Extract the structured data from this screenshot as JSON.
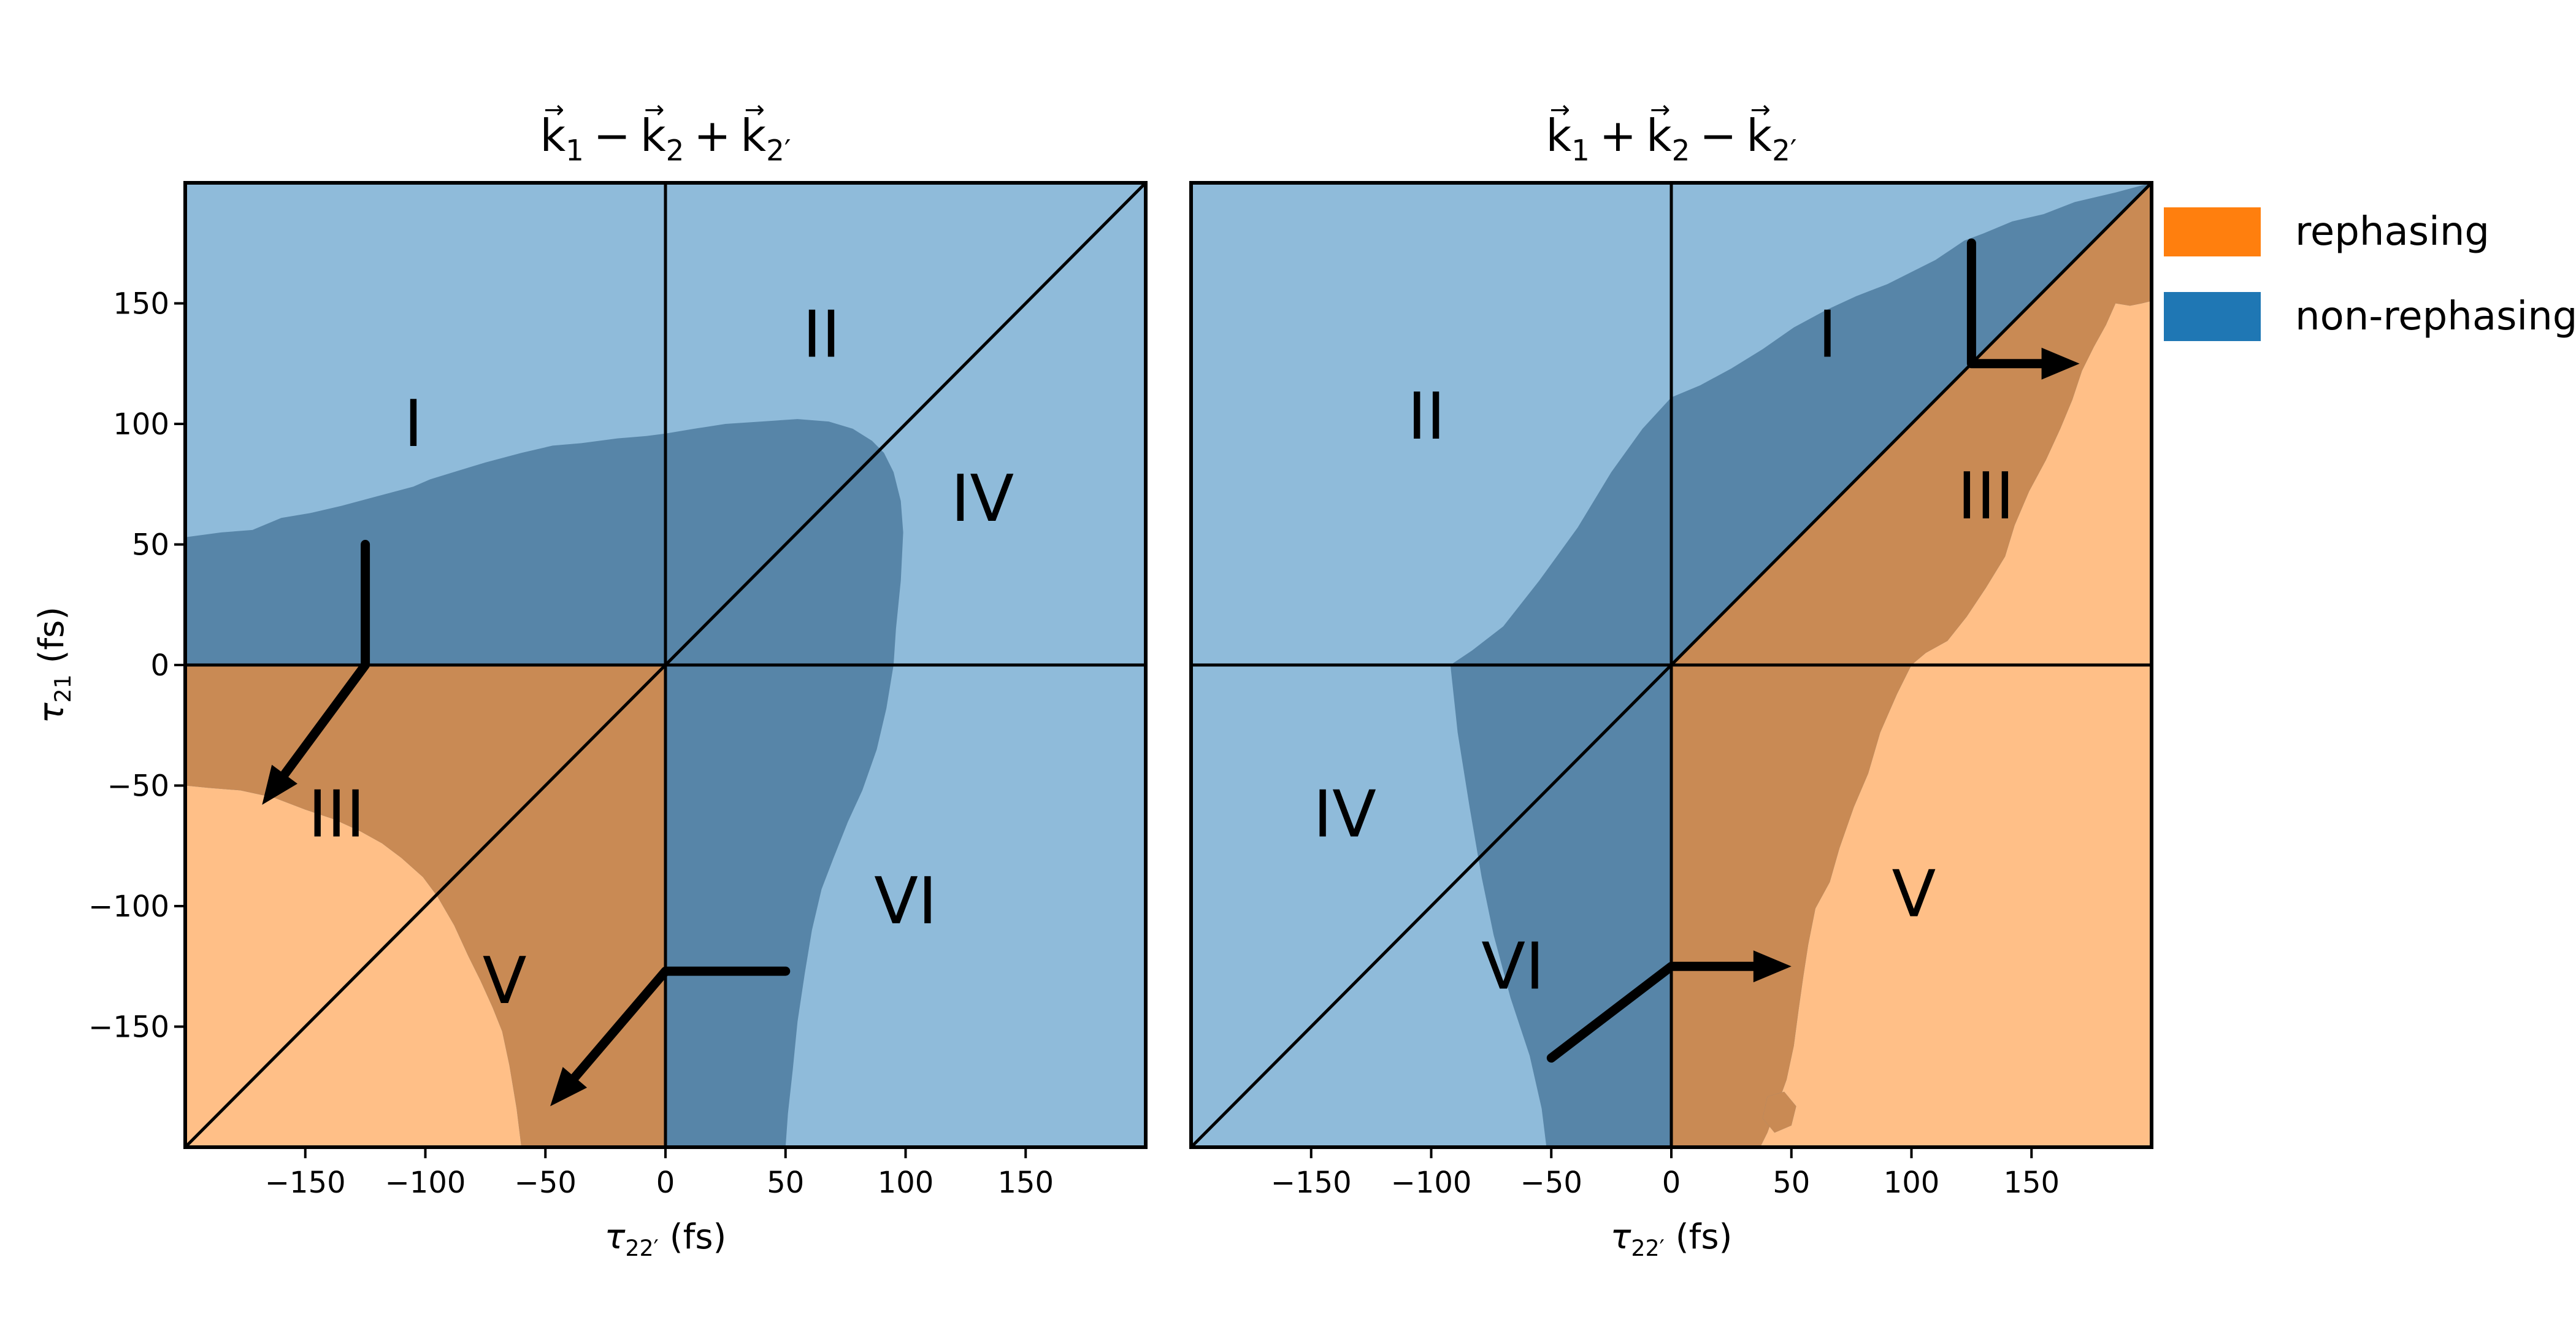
{
  "figure": {
    "background": "#ffffff"
  },
  "colors": {
    "light_blue": "#8fbbda",
    "dark_blue": "#5785a8",
    "light_orange": "#ffbf87",
    "dark_orange": "#c98a54",
    "line": "#000000"
  },
  "legend": {
    "items": [
      {
        "label": "rephasing",
        "color": "#ff7f0e"
      },
      {
        "label": "non-rephasing",
        "color": "#1f77b4"
      }
    ]
  },
  "chart_data": [
    {
      "type": "heatmap",
      "subtype": "filled-contour-region-map",
      "title_text": "k⃗₁ − k⃗₂ + k⃗₂′",
      "title_parts": [
        {
          "sign": "",
          "base": "k",
          "sub": "1"
        },
        {
          "sign": "−",
          "base": "k",
          "sub": "2"
        },
        {
          "sign": "+",
          "base": "k",
          "sub": "2′"
        }
      ],
      "xlabel": {
        "symbol": "τ",
        "sub": "22′",
        "unit": "(fs)"
      },
      "ylabel": {
        "symbol": "τ",
        "sub": "21",
        "unit": "(fs)"
      },
      "xlim": [
        -200,
        200
      ],
      "ylim": [
        -200,
        200
      ],
      "xticks": [
        -150,
        -100,
        -50,
        0,
        50,
        100,
        150
      ],
      "yticks": [
        -150,
        -100,
        -50,
        0,
        50,
        100,
        150
      ],
      "show_ytick_labels": true,
      "reference_lines": [
        "y=0",
        "x=0",
        "diagonal y=x"
      ],
      "rephasing_background_polygon": [
        [
          -200,
          0
        ],
        [
          0,
          0
        ],
        [
          0,
          -200
        ],
        [
          -200,
          -200
        ]
      ],
      "overlap_region_polygon": [
        [
          -200,
          53
        ],
        [
          -185,
          55
        ],
        [
          -172,
          56
        ],
        [
          -160,
          61
        ],
        [
          -148,
          63
        ],
        [
          -135,
          66
        ],
        [
          -120,
          70
        ],
        [
          -105,
          74
        ],
        [
          -98,
          77
        ],
        [
          -85,
          81
        ],
        [
          -75,
          84
        ],
        [
          -60,
          88
        ],
        [
          -47,
          91
        ],
        [
          -35,
          92
        ],
        [
          -20,
          94
        ],
        [
          -8,
          95
        ],
        [
          0,
          96
        ],
        [
          12,
          98
        ],
        [
          25,
          100
        ],
        [
          40,
          101
        ],
        [
          55,
          102
        ],
        [
          68,
          101
        ],
        [
          78,
          98
        ],
        [
          86,
          93
        ],
        [
          91,
          88
        ],
        [
          95,
          80
        ],
        [
          98,
          68
        ],
        [
          99,
          55
        ],
        [
          98,
          35
        ],
        [
          96,
          15
        ],
        [
          95,
          0
        ],
        [
          92,
          -18
        ],
        [
          88,
          -35
        ],
        [
          82,
          -52
        ],
        [
          76,
          -65
        ],
        [
          70,
          -80
        ],
        [
          65,
          -93
        ],
        [
          61,
          -110
        ],
        [
          58,
          -128
        ],
        [
          55,
          -148
        ],
        [
          53,
          -168
        ],
        [
          51,
          -186
        ],
        [
          50,
          -200
        ],
        [
          -60,
          -200
        ],
        [
          -62,
          -184
        ],
        [
          -65,
          -166
        ],
        [
          -68,
          -152
        ],
        [
          -72,
          -142
        ],
        [
          -77,
          -131
        ],
        [
          -82,
          -121
        ],
        [
          -88,
          -108
        ],
        [
          -95,
          -96
        ],
        [
          -101,
          -88
        ],
        [
          -110,
          -80
        ],
        [
          -118,
          -74
        ],
        [
          -127,
          -69
        ],
        [
          -138,
          -64
        ],
        [
          -150,
          -60
        ],
        [
          -163,
          -55
        ],
        [
          -177,
          -52
        ],
        [
          -190,
          -51
        ],
        [
          -200,
          -50
        ]
      ],
      "islands": [],
      "region_labels": [
        {
          "text": "I",
          "x": -105,
          "y": 100
        },
        {
          "text": "II",
          "x": 65,
          "y": 137
        },
        {
          "text": "IV",
          "x": 132,
          "y": 69
        },
        {
          "text": "III",
          "x": -137,
          "y": -62
        },
        {
          "text": "V",
          "x": -67,
          "y": -131
        },
        {
          "text": "VI",
          "x": 100,
          "y": -98
        }
      ],
      "pulse_arrows": [
        {
          "points": [
            [
              -125,
              50
            ],
            [
              -125,
              0
            ],
            [
              -168,
              -58
            ]
          ]
        },
        {
          "points": [
            [
              50,
              -127
            ],
            [
              0,
              -127
            ],
            [
              -48,
              -183
            ]
          ]
        }
      ]
    },
    {
      "type": "heatmap",
      "subtype": "filled-contour-region-map",
      "title_text": "k⃗₁ + k⃗₂ − k⃗₂′",
      "title_parts": [
        {
          "sign": "",
          "base": "k",
          "sub": "1"
        },
        {
          "sign": "+",
          "base": "k",
          "sub": "2"
        },
        {
          "sign": "−",
          "base": "k",
          "sub": "2′"
        }
      ],
      "xlabel": {
        "symbol": "τ",
        "sub": "22′",
        "unit": "(fs)"
      },
      "ylabel": null,
      "xlim": [
        -200,
        200
      ],
      "ylim": [
        -200,
        200
      ],
      "xticks": [
        -150,
        -100,
        -50,
        0,
        50,
        100,
        150
      ],
      "yticks": [
        -150,
        -100,
        -50,
        0,
        50,
        100,
        150
      ],
      "show_ytick_labels": false,
      "reference_lines": [
        "y=0",
        "x=0",
        "diagonal y=x"
      ],
      "rephasing_background_polygon": [
        [
          0,
          0
        ],
        [
          200,
          200
        ],
        [
          200,
          -200
        ],
        [
          0,
          -200
        ]
      ],
      "overlap_region_polygon": [
        [
          200,
          200
        ],
        [
          185,
          196
        ],
        [
          168,
          192
        ],
        [
          155,
          187
        ],
        [
          142,
          184
        ],
        [
          130,
          179
        ],
        [
          122,
          176
        ],
        [
          110,
          168
        ],
        [
          102,
          164
        ],
        [
          90,
          158
        ],
        [
          77,
          153
        ],
        [
          64,
          147
        ],
        [
          51,
          140
        ],
        [
          38,
          131
        ],
        [
          25,
          123
        ],
        [
          12,
          116
        ],
        [
          0,
          111
        ],
        [
          -12,
          98
        ],
        [
          -25,
          80
        ],
        [
          -39,
          57
        ],
        [
          -55,
          35
        ],
        [
          -70,
          16
        ],
        [
          -83,
          6
        ],
        [
          -92,
          0
        ],
        [
          -89,
          -28
        ],
        [
          -84,
          -59
        ],
        [
          -79,
          -88
        ],
        [
          -74,
          -112
        ],
        [
          -67,
          -138
        ],
        [
          -59,
          -162
        ],
        [
          -54,
          -184
        ],
        [
          -52,
          -200
        ],
        [
          37,
          -200
        ],
        [
          40,
          -194
        ],
        [
          44,
          -183
        ],
        [
          48,
          -172
        ],
        [
          51,
          -158
        ],
        [
          53,
          -143
        ],
        [
          55,
          -129
        ],
        [
          57,
          -116
        ],
        [
          60,
          -101
        ],
        [
          66,
          -90
        ],
        [
          70,
          -76
        ],
        [
          76,
          -59
        ],
        [
          82,
          -45
        ],
        [
          87,
          -28
        ],
        [
          94,
          -12
        ],
        [
          100,
          0
        ],
        [
          106,
          5
        ],
        [
          115,
          10
        ],
        [
          123,
          20
        ],
        [
          131,
          32
        ],
        [
          139,
          45
        ],
        [
          143,
          58
        ],
        [
          149,
          72
        ],
        [
          156,
          85
        ],
        [
          162,
          98
        ],
        [
          167,
          110
        ],
        [
          171,
          122
        ],
        [
          176,
          132
        ],
        [
          181,
          141
        ],
        [
          185,
          150
        ],
        [
          191,
          149
        ],
        [
          196,
          150
        ],
        [
          200,
          151
        ]
      ],
      "islands": [
        [
          [
            40,
            -179
          ],
          [
            47,
            -177
          ],
          [
            52,
            -183
          ],
          [
            50,
            -191
          ],
          [
            43,
            -194
          ],
          [
            38,
            -188
          ]
        ]
      ],
      "region_labels": [
        {
          "text": "II",
          "x": -102,
          "y": 103
        },
        {
          "text": "I",
          "x": 65,
          "y": 137
        },
        {
          "text": "III",
          "x": 131,
          "y": 70
        },
        {
          "text": "IV",
          "x": -136,
          "y": -62
        },
        {
          "text": "VI",
          "x": -66,
          "y": -125
        },
        {
          "text": "V",
          "x": 101,
          "y": -95
        }
      ],
      "pulse_arrows": [
        {
          "points": [
            [
              125,
              175
            ],
            [
              125,
              125
            ],
            [
              170,
              125
            ]
          ]
        },
        {
          "points": [
            [
              -50,
              -163
            ],
            [
              0,
              -125
            ],
            [
              50,
              -125
            ]
          ]
        }
      ]
    }
  ]
}
